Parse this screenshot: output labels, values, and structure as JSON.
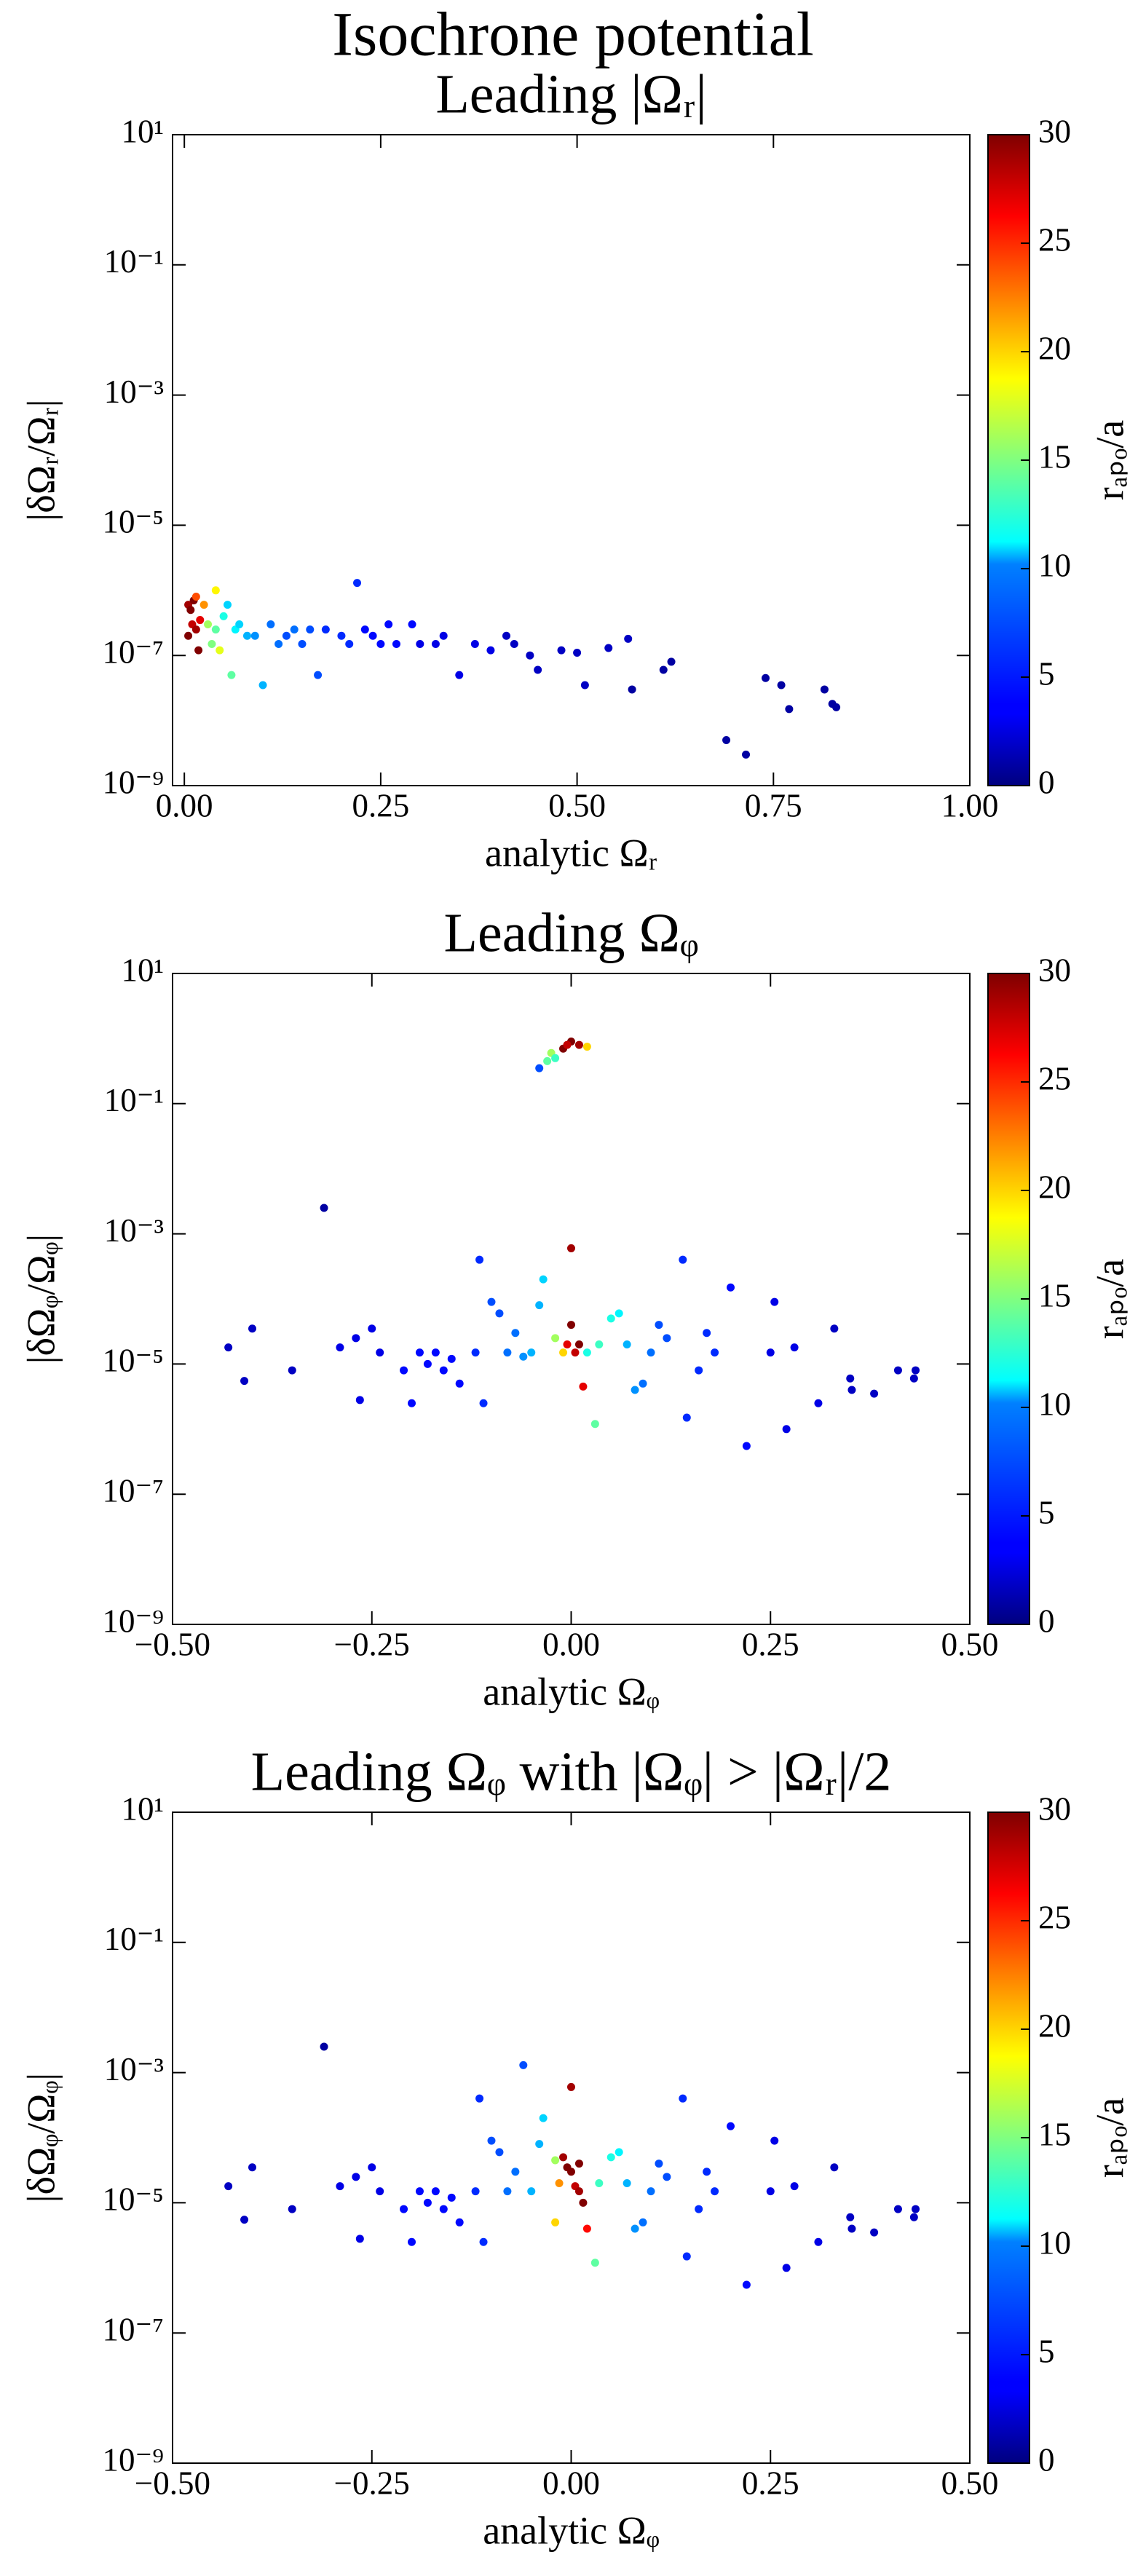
{
  "title": "Isochrone potential",
  "chart_data": [
    {
      "type": "scatter",
      "title": "Leading |Ωᵣ|",
      "x_label": "analytic Ωᵣ",
      "y_label": "|δΩᵣ/Ωᵣ|",
      "log_y": true,
      "colormap": "jet",
      "colorbar_label": "rₐₚₒ/a",
      "clim": [
        0,
        30
      ],
      "cticks": [
        0,
        5,
        10,
        15,
        20,
        25,
        30
      ],
      "xlim": [
        -0.015,
        1.0
      ],
      "xticks": [
        {
          "value": 0,
          "label": "0.00"
        },
        0.25,
        {
          "value": 0.5,
          "label": "0.50"
        },
        0.75,
        {
          "value": 1,
          "label": "1.00"
        }
      ],
      "ylim": [
        1e-09,
        10
      ],
      "yticks": [
        {
          "value": 1e-09,
          "label": "10⁻⁹"
        },
        {
          "value": 1e-07,
          "label": "10⁻⁷"
        },
        {
          "value": 1e-05,
          "label": "10⁻⁵"
        },
        {
          "value": 0.001,
          "label": "10⁻³"
        },
        {
          "value": 0.1,
          "label": "10⁻¹"
        },
        {
          "value": 10,
          "label": "10¹"
        }
      ],
      "x": [
        0.005,
        0.008,
        0.01,
        0.012,
        0.015,
        0.02,
        0.018,
        0.005,
        0.025,
        0.03,
        0.035,
        0.04,
        0.045,
        0.05,
        0.055,
        0.06,
        0.065,
        0.07,
        0.08,
        0.09,
        0.1,
        0.11,
        0.12,
        0.13,
        0.14,
        0.15,
        0.16,
        0.17,
        0.18,
        0.2,
        0.21,
        0.22,
        0.23,
        0.24,
        0.25,
        0.26,
        0.27,
        0.29,
        0.3,
        0.32,
        0.33,
        0.35,
        0.37,
        0.39,
        0.41,
        0.42,
        0.44,
        0.45,
        0.48,
        0.5,
        0.51,
        0.54,
        0.565,
        0.57,
        0.61,
        0.62,
        0.69,
        0.715,
        0.74,
        0.76,
        0.77,
        0.815,
        0.825,
        0.83,
        0.015,
        0.04
      ],
      "values": [
        6e-07,
        5e-07,
        3e-07,
        7e-07,
        2.5e-07,
        3.5e-07,
        1.2e-07,
        2e-07,
        6e-07,
        3e-07,
        1.5e-07,
        2.5e-07,
        1.2e-07,
        4e-07,
        6e-07,
        5e-08,
        2.5e-07,
        3e-07,
        2e-07,
        2e-07,
        3.5e-08,
        3e-07,
        1.5e-07,
        2e-07,
        2.5e-07,
        1.5e-07,
        2.5e-07,
        5e-08,
        2.5e-07,
        2e-07,
        1.5e-07,
        1.3e-06,
        2.5e-07,
        2e-07,
        1.5e-07,
        3e-07,
        1.5e-07,
        3e-07,
        1.5e-07,
        1.5e-07,
        2e-07,
        5e-08,
        1.5e-07,
        1.2e-07,
        2e-07,
        1.5e-07,
        1e-07,
        6e-08,
        1.2e-07,
        1.1e-07,
        3.5e-08,
        1.3e-07,
        1.8e-07,
        3e-08,
        6e-08,
        8e-08,
        5e-09,
        3e-09,
        4.5e-08,
        3.5e-08,
        1.5e-08,
        3e-08,
        1.8e-08,
        1.6e-08,
        8e-07,
        1e-06
      ],
      "c": [
        29,
        30,
        28,
        30,
        29,
        27,
        30,
        30,
        22,
        16,
        15,
        14,
        18,
        12,
        10,
        14,
        11,
        10,
        9,
        8,
        9,
        7,
        7,
        6,
        7,
        6,
        6,
        6,
        5,
        5,
        5,
        5,
        4,
        4,
        4,
        4,
        4,
        4,
        3,
        3,
        3,
        3,
        3,
        3,
        2,
        2,
        2,
        2,
        2,
        2,
        2,
        2,
        2,
        1,
        1,
        1,
        1,
        1,
        1,
        1,
        1,
        1,
        1,
        1,
        24,
        19
      ]
    },
    {
      "type": "scatter",
      "title": "Leading Ωᵩ",
      "x_label": "analytic Ωᵩ",
      "y_label": "|δΩᵩ/Ωᵩ|",
      "log_y": true,
      "colormap": "jet",
      "colorbar_label": "rₐₚₒ/a",
      "clim": [
        0,
        30
      ],
      "cticks": [
        0,
        5,
        10,
        15,
        20,
        25,
        30
      ],
      "xlim": [
        -0.5,
        0.5
      ],
      "xticks": [
        {
          "value": -0.5,
          "label": "−0.50"
        },
        {
          "value": -0.25,
          "label": "−0.25"
        },
        {
          "value": 0,
          "label": "0.00"
        },
        0.25,
        {
          "value": 0.5,
          "label": "0.50"
        }
      ],
      "ylim": [
        1e-09,
        10
      ],
      "yticks": [
        {
          "value": 1e-09,
          "label": "10⁻⁹"
        },
        {
          "value": 1e-07,
          "label": "10⁻⁷"
        },
        {
          "value": 1e-05,
          "label": "10⁻⁵"
        },
        {
          "value": 0.001,
          "label": "10⁻³"
        },
        {
          "value": 0.1,
          "label": "10⁻¹"
        },
        {
          "value": 10,
          "label": "10¹"
        }
      ],
      "x": [
        -0.04,
        -0.03,
        -0.025,
        -0.02,
        -0.01,
        0,
        0.01,
        0.02,
        -0.005,
        -0.43,
        -0.41,
        -0.4,
        -0.35,
        -0.31,
        -0.29,
        -0.27,
        -0.265,
        -0.25,
        -0.24,
        -0.21,
        -0.2,
        -0.19,
        -0.18,
        -0.17,
        -0.16,
        -0.15,
        -0.14,
        -0.12,
        -0.115,
        -0.11,
        -0.1,
        -0.09,
        -0.08,
        -0.07,
        -0.06,
        -0.05,
        -0.04,
        -0.035,
        -0.02,
        -0.01,
        -0.005,
        0,
        0,
        0.005,
        0.01,
        0.015,
        0.02,
        0.03,
        0.035,
        0.05,
        0.06,
        0.07,
        0.08,
        0.09,
        0.1,
        0.11,
        0.12,
        0.14,
        0.145,
        0.16,
        0.17,
        0.18,
        0.2,
        0.22,
        0.25,
        0.255,
        0.27,
        0.28,
        0.31,
        0.33,
        0.35,
        0.352,
        0.38,
        0.41,
        0.43,
        0.432
      ],
      "values": [
        0.35,
        0.45,
        0.6,
        0.5,
        0.7,
        0.9,
        0.8,
        0.75,
        0.8,
        1.8e-05,
        5.5e-06,
        3.5e-05,
        8e-06,
        0.0025,
        1.8e-05,
        2.5e-05,
        2.8e-06,
        3.5e-05,
        1.5e-05,
        8e-06,
        2.5e-06,
        1.5e-05,
        1e-05,
        1.5e-05,
        8e-06,
        1.2e-05,
        5e-06,
        1.5e-05,
        0.0004,
        2.5e-06,
        9e-05,
        6e-05,
        1.5e-05,
        3e-05,
        1.3e-05,
        1.5e-05,
        8e-05,
        0.0002,
        2.5e-05,
        1.5e-05,
        2e-05,
        0.0006,
        4e-05,
        1.5e-05,
        2e-05,
        4.5e-06,
        1.5e-05,
        1.2e-06,
        2e-05,
        5e-05,
        6e-05,
        2e-05,
        4e-06,
        5e-06,
        1.5e-05,
        4e-05,
        2.5e-05,
        0.0004,
        1.5e-06,
        8e-06,
        3e-05,
        1.5e-05,
        0.00015,
        5.5e-07,
        1.5e-05,
        9e-05,
        1e-06,
        1.8e-05,
        2.5e-06,
        3.5e-05,
        6e-06,
        4e-06,
        3.5e-06,
        8e-06,
        6e-06,
        8e-06
      ],
      "c": [
        6,
        14,
        16,
        13,
        30,
        30,
        29,
        20,
        28,
        2,
        2,
        2,
        2,
        1,
        3,
        3,
        3,
        3,
        3,
        4,
        4,
        4,
        4,
        4,
        4,
        4,
        4,
        5,
        5,
        5,
        6,
        6,
        7,
        7,
        8,
        9,
        9,
        10,
        16,
        20,
        27,
        29,
        30,
        28,
        30,
        27,
        12,
        14,
        13,
        12,
        11,
        9,
        8,
        7,
        7,
        6,
        6,
        5,
        5,
        5,
        5,
        5,
        4,
        4,
        3,
        3,
        3,
        3,
        3,
        2,
        2,
        2,
        2,
        2,
        2,
        2
      ]
    },
    {
      "type": "scatter",
      "title": "Leading Ωᵩ with |Ωᵩ| > |Ωᵣ|/2",
      "x_label": "analytic Ωᵩ",
      "y_label": "|δΩᵩ/Ωᵩ|",
      "log_y": true,
      "colormap": "jet",
      "colorbar_label": "rₐₚₒ/a",
      "clim": [
        0,
        30
      ],
      "cticks": [
        0,
        5,
        10,
        15,
        20,
        25,
        30
      ],
      "xlim": [
        -0.5,
        0.5
      ],
      "xticks": [
        {
          "value": -0.5,
          "label": "−0.50"
        },
        {
          "value": -0.25,
          "label": "−0.25"
        },
        {
          "value": 0,
          "label": "0.00"
        },
        0.25,
        {
          "value": 0.5,
          "label": "0.50"
        }
      ],
      "ylim": [
        1e-09,
        10
      ],
      "yticks": [
        {
          "value": 1e-09,
          "label": "10⁻⁹"
        },
        {
          "value": 1e-07,
          "label": "10⁻⁷"
        },
        {
          "value": 1e-05,
          "label": "10⁻⁵"
        },
        {
          "value": 0.001,
          "label": "10⁻³"
        },
        {
          "value": 0.1,
          "label": "10⁻¹"
        },
        {
          "value": 10,
          "label": "10¹"
        }
      ],
      "x": [
        -0.02,
        -0.015,
        -0.01,
        -0.005,
        0,
        0.005,
        0.01,
        0.015,
        0.02,
        -0.02,
        0.01,
        -0.06,
        -0.43,
        -0.41,
        -0.4,
        -0.35,
        -0.31,
        -0.29,
        -0.27,
        -0.265,
        -0.25,
        -0.24,
        -0.21,
        -0.2,
        -0.19,
        -0.18,
        -0.17,
        -0.16,
        -0.15,
        -0.14,
        -0.12,
        -0.115,
        -0.11,
        -0.1,
        -0.09,
        -0.08,
        -0.07,
        -0.05,
        -0.04,
        -0.035,
        0,
        0.03,
        0.035,
        0.05,
        0.06,
        0.07,
        0.08,
        0.09,
        0.1,
        0.11,
        0.12,
        0.14,
        0.145,
        0.16,
        0.17,
        0.18,
        0.2,
        0.22,
        0.25,
        0.255,
        0.27,
        0.28,
        0.31,
        0.33,
        0.35,
        0.352,
        0.38,
        0.41,
        0.43,
        0.432
      ],
      "values": [
        4.5e-05,
        2e-05,
        5e-05,
        3.5e-05,
        3e-05,
        1.8e-05,
        1.5e-05,
        1e-05,
        4e-06,
        5e-06,
        4e-05,
        0.0013,
        1.8e-05,
        5.5e-06,
        3.5e-05,
        8e-06,
        0.0025,
        1.8e-05,
        2.5e-05,
        2.8e-06,
        3.5e-05,
        1.5e-05,
        8e-06,
        2.5e-06,
        1.5e-05,
        1e-05,
        1.5e-05,
        8e-06,
        1.2e-05,
        5e-06,
        1.5e-05,
        0.0004,
        2.5e-06,
        9e-05,
        6e-05,
        1.5e-05,
        3e-05,
        1.5e-05,
        8e-05,
        0.0002,
        0.0006,
        1.2e-06,
        2e-05,
        5e-05,
        6e-05,
        2e-05,
        4e-06,
        5e-06,
        1.5e-05,
        4e-05,
        2.5e-05,
        0.0004,
        1.5e-06,
        8e-06,
        3e-05,
        1.5e-05,
        0.00015,
        5.5e-07,
        1.5e-05,
        9e-05,
        1e-06,
        1.8e-05,
        2.5e-06,
        3.5e-05,
        6e-06,
        4e-06,
        3.5e-06,
        8e-06,
        6e-06,
        8e-06
      ],
      "c": [
        16,
        22,
        29,
        30,
        30,
        28,
        29,
        30,
        26,
        20,
        30,
        6,
        2,
        2,
        2,
        2,
        1,
        3,
        3,
        3,
        3,
        3,
        4,
        4,
        4,
        4,
        4,
        4,
        4,
        4,
        5,
        5,
        5,
        6,
        6,
        7,
        7,
        9,
        9,
        10,
        29,
        14,
        13,
        12,
        11,
        9,
        8,
        7,
        7,
        6,
        6,
        5,
        5,
        5,
        5,
        5,
        4,
        4,
        3,
        3,
        3,
        3,
        3,
        2,
        2,
        2,
        2,
        2,
        2,
        2
      ]
    }
  ]
}
